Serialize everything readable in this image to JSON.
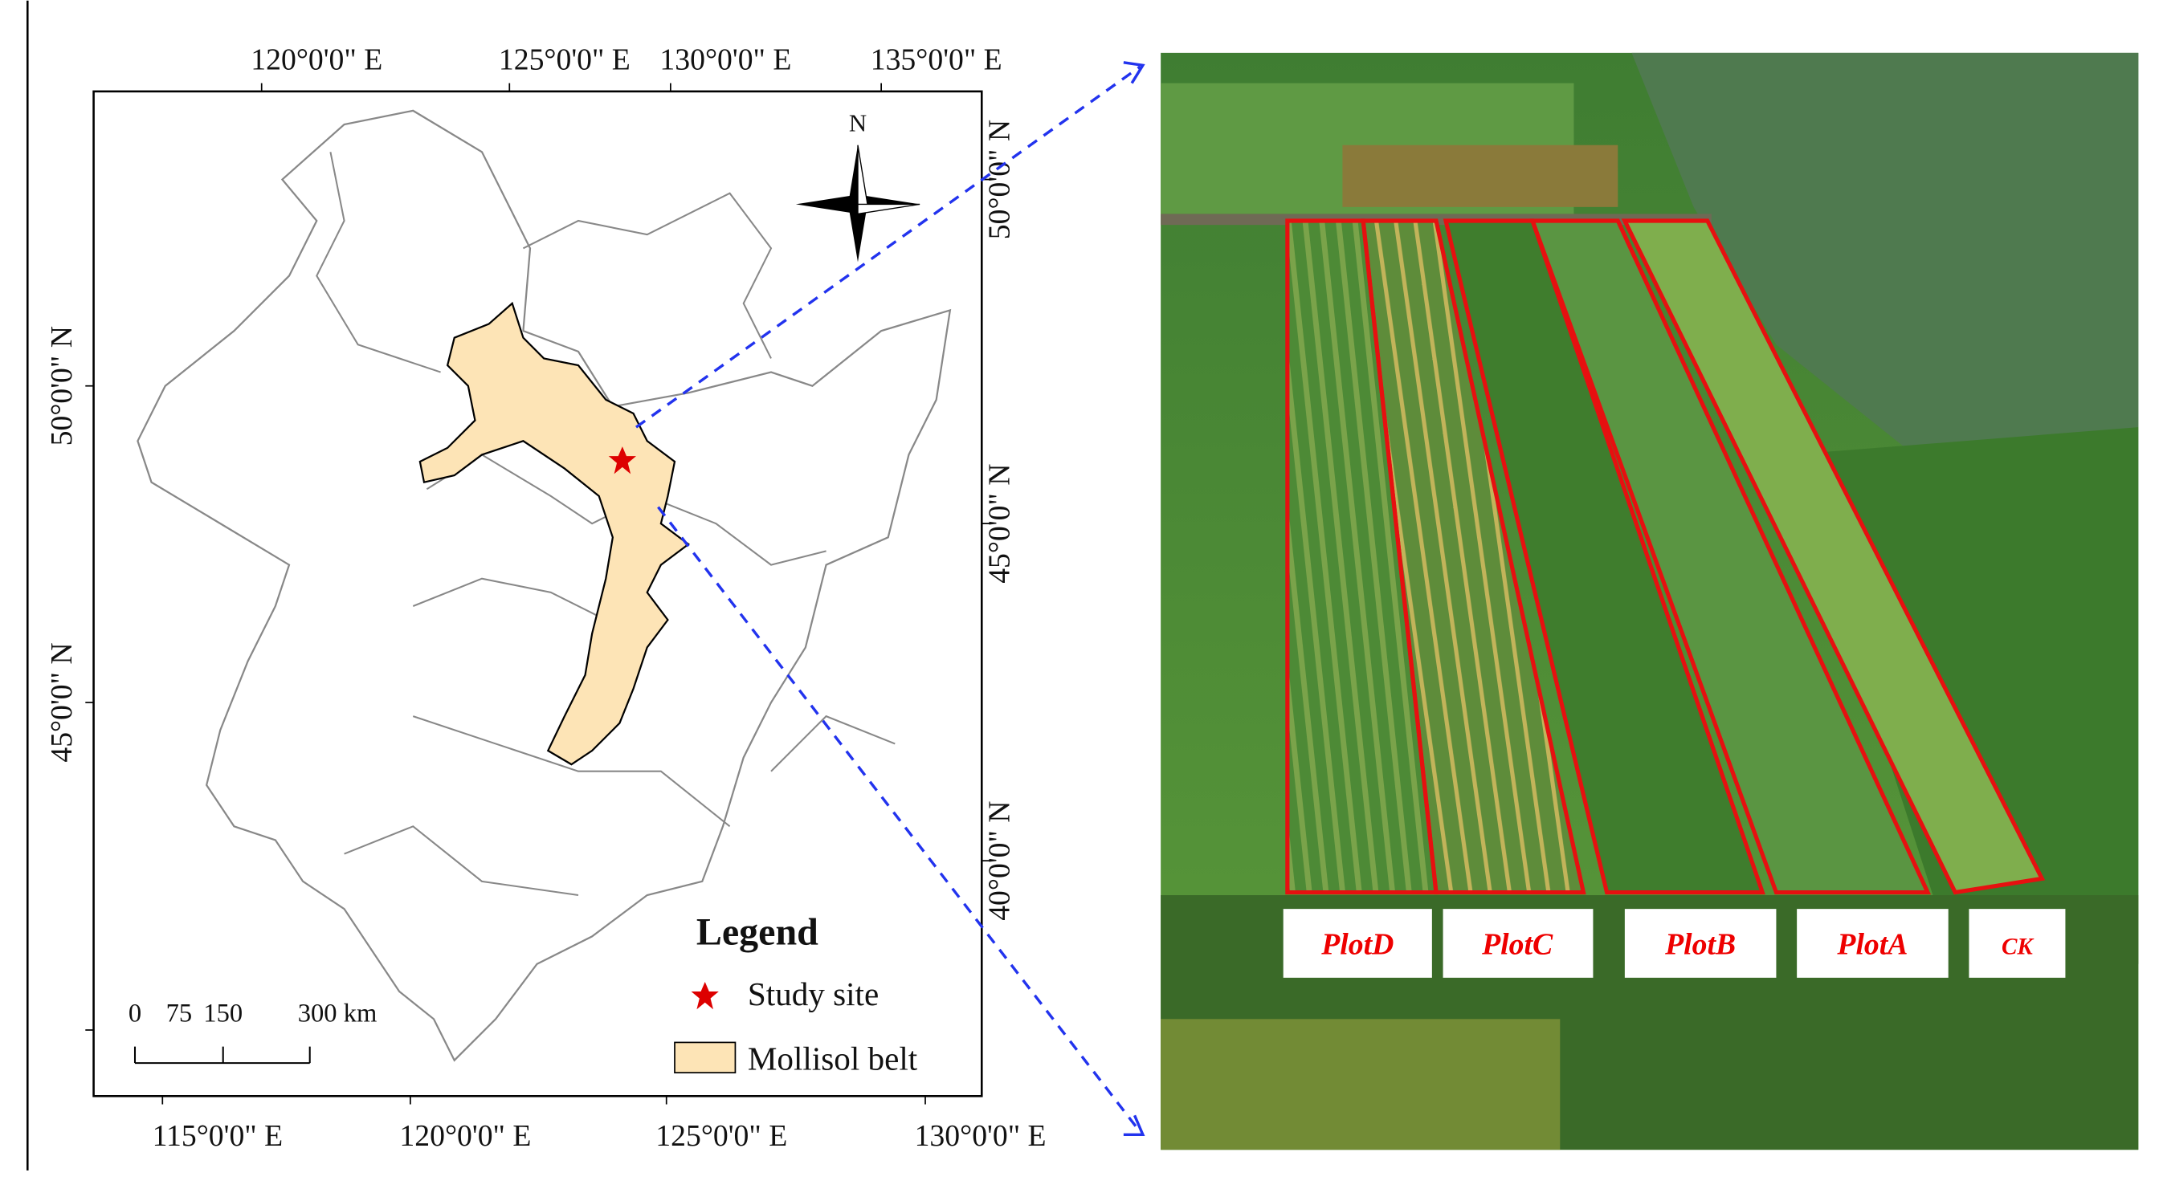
{
  "map": {
    "top_labels": [
      "120°0'0\" E",
      "125°0'0\" E",
      "130°0'0\" E",
      "135°0'0\" E"
    ],
    "bottom_labels": [
      "115°0'0\" E",
      "120°0'0\" E",
      "125°0'0\" E",
      "130°0'0\" E"
    ],
    "left_labels": [
      "50°0'0\" N",
      "45°0'0\" N"
    ],
    "right_labels": [
      "50°0'0\" N",
      "45°0'0\" N",
      "40°0'0\" N"
    ],
    "north": "N",
    "scale_bar": [
      "0",
      "75",
      "150",
      "300 km"
    ],
    "legend": {
      "title": "Legend",
      "items": [
        "Study site",
        "Mollisol belt"
      ]
    }
  },
  "photo": {
    "plot_labels": [
      "PlotD",
      "PlotC",
      "PlotB",
      "PlotA",
      "CK"
    ]
  }
}
